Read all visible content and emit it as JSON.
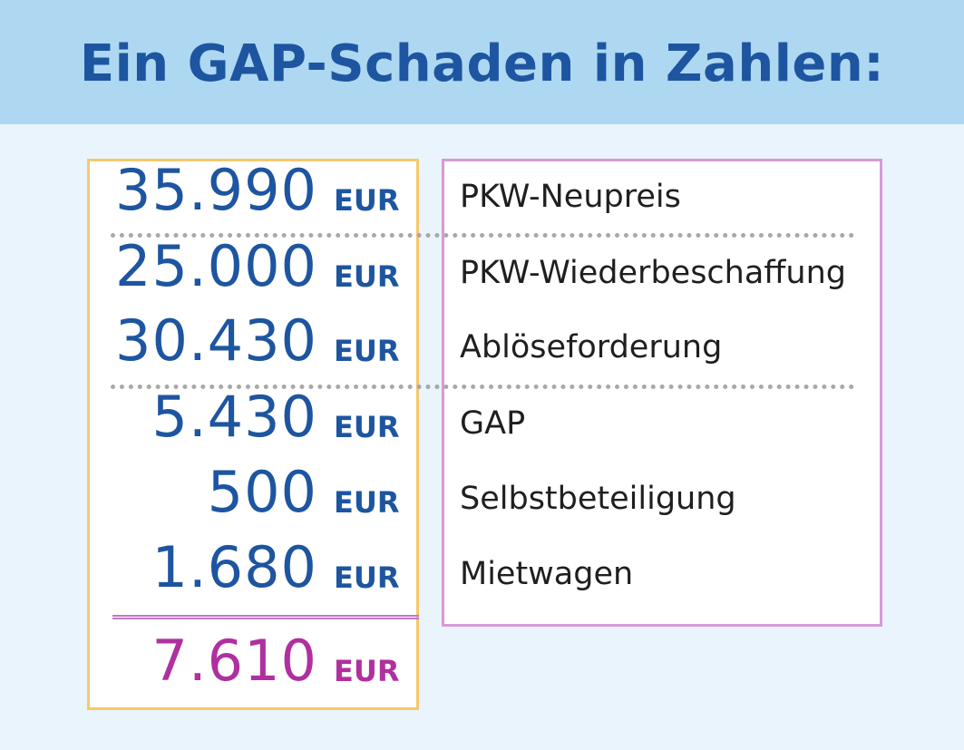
{
  "title": "Ein GAP-Schaden in Zahlen:",
  "unit": "EUR",
  "rows": [
    {
      "value": "35.990",
      "label": "PKW-Neupreis"
    },
    {
      "value": "25.000",
      "label": "PKW-Wiederbeschaffung"
    },
    {
      "value": "30.430",
      "label": "Ablöseforderung"
    },
    {
      "value": "5.430",
      "label": "GAP"
    },
    {
      "value": "500",
      "label": "Selbstbeteiligung"
    },
    {
      "value": "1.680",
      "label": "Mietwagen"
    }
  ],
  "total": {
    "value": "7.610"
  },
  "colors": {
    "header_bg": "#aed8f1",
    "page_bg": "#eaf4fd",
    "blue_text": "#1d55a0",
    "total_text": "#b030a0",
    "amount_border": "#f6c96b",
    "label_border": "#d79ad8"
  }
}
